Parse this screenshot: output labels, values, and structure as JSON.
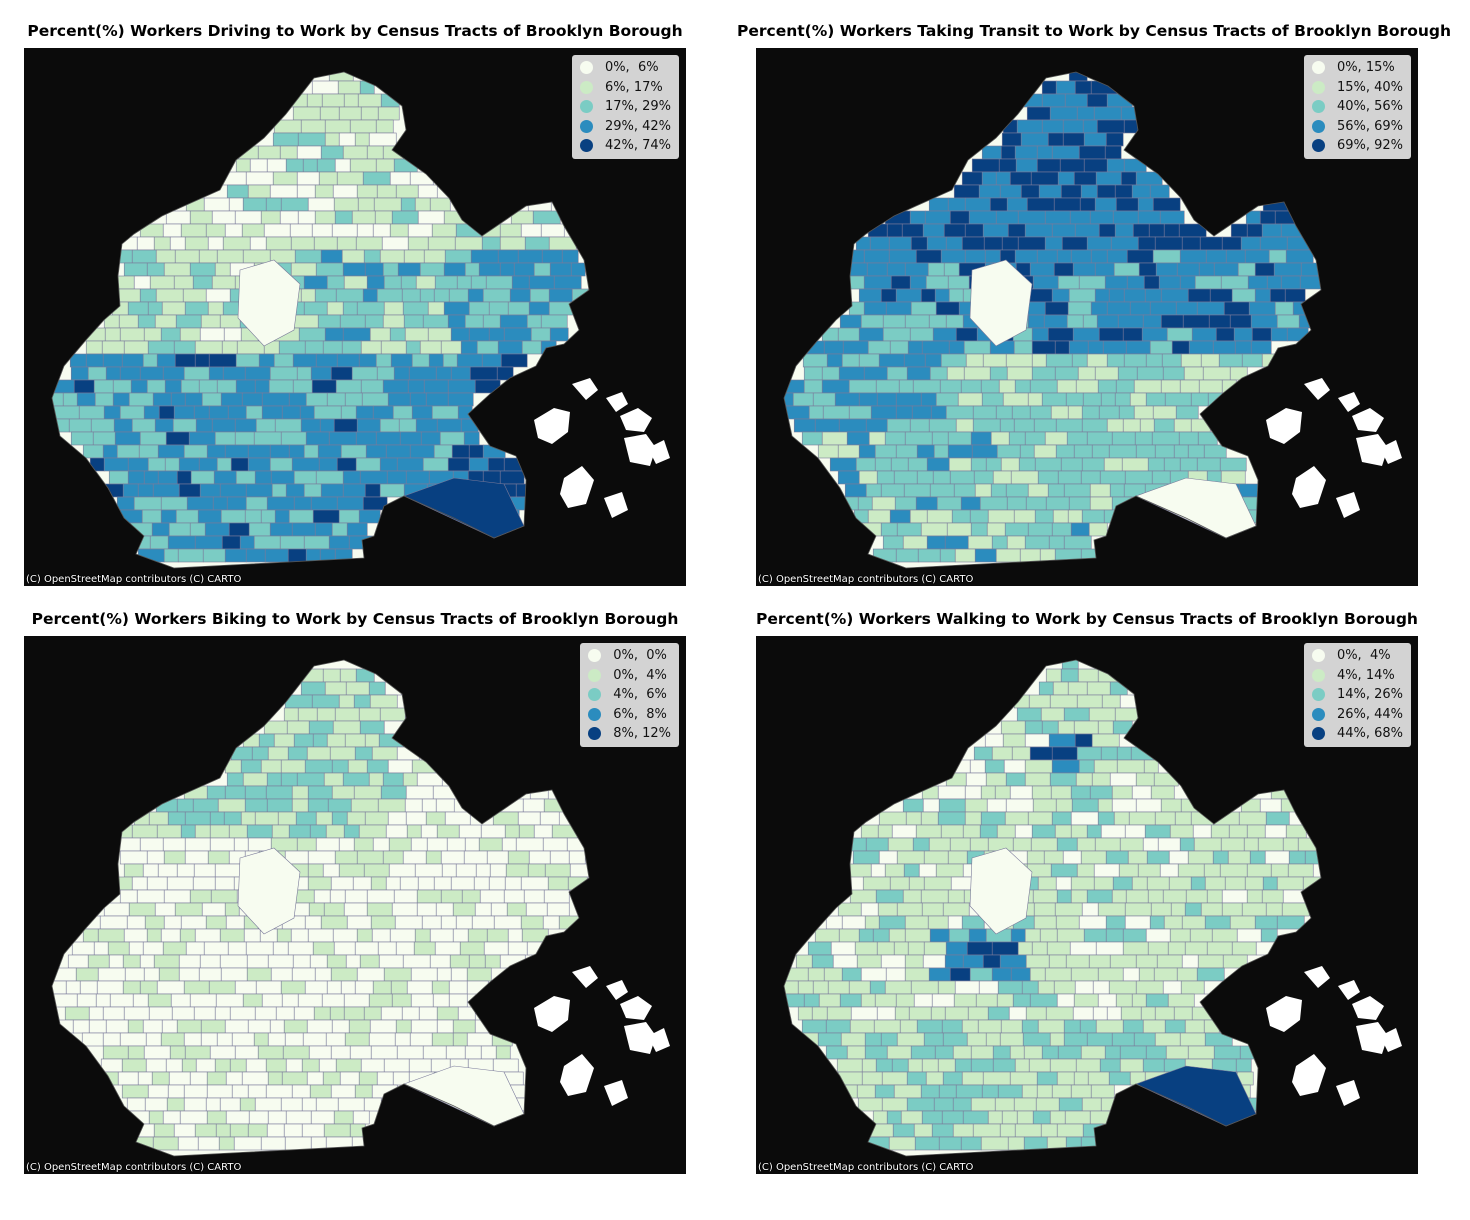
{
  "colors": {
    "background": "#0b0b0b",
    "class_0": "#f7fcf0",
    "class_1": "#ccebc5",
    "class_2": "#7bccc4",
    "class_3": "#2b8cbe",
    "class_4": "#084081",
    "tract_line": "#7a7a9a",
    "water_land": "#ffffff"
  },
  "panels": [
    {
      "id": "driving",
      "title": "Percent(%) Workers Driving to Work by Census Tracts of Brooklyn Borough",
      "legend": [
        "0%,  6%",
        "6%, 17%",
        "17%, 29%",
        "29%, 42%",
        "42%, 74%"
      ],
      "attribution": "(C) OpenStreetMap contributors (C) CARTO"
    },
    {
      "id": "transit",
      "title": "Percent(%) Workers Taking Transit to Work by Census Tracts of Brooklyn Borough",
      "legend": [
        "0%, 15%",
        "15%, 40%",
        "40%, 56%",
        "56%, 69%",
        "69%, 92%"
      ],
      "attribution": "(C) OpenStreetMap contributors (C) CARTO"
    },
    {
      "id": "biking",
      "title": "Percent(%) Workers Biking to Work by Census Tracts of Brooklyn Borough",
      "legend": [
        "0%,  0%",
        "0%,  4%",
        "4%,  6%",
        "6%,  8%",
        "8%, 12%"
      ],
      "attribution": "(C) OpenStreetMap contributors (C) CARTO"
    },
    {
      "id": "walking",
      "title": "Percent(%) Workers Walking to Work by Census Tracts of Brooklyn Borough",
      "legend": [
        "0%,  4%",
        "4%, 14%",
        "14%, 26%",
        "26%, 44%",
        "44%, 68%"
      ],
      "attribution": "(C) OpenStreetMap contributors (C) CARTO"
    }
  ]
}
